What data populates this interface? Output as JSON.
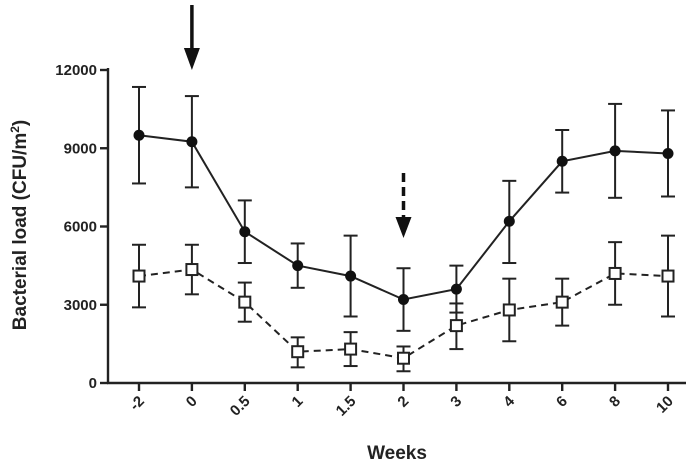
{
  "chart_data": {
    "type": "line",
    "title": "",
    "xlabel": "Weeks",
    "ylabel_main": "Bacterial load (CFU/m",
    "ylabel_sup": "2",
    "ylabel_close": ")",
    "ylim": [
      0,
      12000
    ],
    "yticks": [
      "0",
      "3000",
      "6000",
      "9000",
      "12000"
    ],
    "categories": [
      "-2",
      "0",
      "0.5",
      "1",
      "1.5",
      "2",
      "3",
      "4",
      "6",
      "8",
      "10"
    ],
    "series": [
      {
        "name": "solid-filled-circles",
        "style": "solid",
        "marker": "filled-circle",
        "values": [
          9500,
          9250,
          5800,
          4500,
          4100,
          3200,
          3600,
          6200,
          8500,
          8900,
          8800
        ],
        "err_low": [
          7650,
          7500,
          4600,
          3650,
          2550,
          2000,
          2700,
          4600,
          7300,
          7100,
          7150
        ],
        "err_high": [
          11350,
          11000,
          7000,
          5350,
          5650,
          4400,
          4500,
          7750,
          9700,
          10700,
          10450
        ]
      },
      {
        "name": "dashed-open-squares",
        "style": "dashed",
        "marker": "open-square",
        "values": [
          4100,
          4350,
          3100,
          1200,
          1300,
          950,
          2200,
          2800,
          3100,
          4200,
          4100
        ],
        "err_low": [
          2900,
          3400,
          2350,
          600,
          650,
          450,
          1300,
          1600,
          2200,
          3000,
          2550
        ],
        "err_high": [
          5300,
          5300,
          3850,
          1750,
          1950,
          1400,
          3050,
          4000,
          4000,
          5400,
          5650
        ]
      }
    ],
    "annotations": [
      {
        "type": "solid-arrow",
        "at_category": "0"
      },
      {
        "type": "dashed-arrow",
        "at_category": "2"
      }
    ]
  }
}
